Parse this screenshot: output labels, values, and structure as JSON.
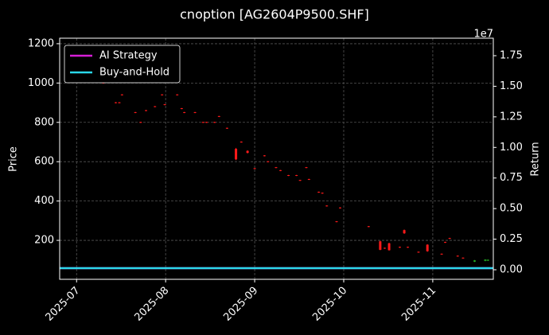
{
  "chart_data": {
    "type": "candlestick",
    "title": "cnoption [AG2604P9500.SHF]",
    "ylabel": "Price",
    "y2label": "Return",
    "y2_offset_label": "1e7",
    "xlim": [
      -0.19,
      4.68
    ],
    "xticks": [
      {
        "value": 0,
        "label": "2025-07"
      },
      {
        "value": 1,
        "label": "2025-08"
      },
      {
        "value": 2,
        "label": "2025-09"
      },
      {
        "value": 3,
        "label": "2025-10"
      },
      {
        "value": 4,
        "label": "2025-11"
      }
    ],
    "ylim": [
      2,
      1228
    ],
    "yticks": [
      200,
      400,
      600,
      800,
      1000,
      1200
    ],
    "y2lim": [
      -780000,
      18930000
    ],
    "y2ticks": [
      {
        "value": 0,
        "label": "0.00"
      },
      {
        "value": 2500000,
        "label": "0.25"
      },
      {
        "value": 5000000,
        "label": "0.50"
      },
      {
        "value": 7500000,
        "label": "0.75"
      },
      {
        "value": 10000000,
        "label": "1.00"
      },
      {
        "value": 12500000,
        "label": "1.25"
      },
      {
        "value": 15000000,
        "label": "1.50"
      },
      {
        "value": 17500000,
        "label": "1.75"
      }
    ],
    "grid": true,
    "legend": "upper left",
    "up_color": "#22a822",
    "down_color": "#ff1a1a",
    "x": [
      0.3,
      0.44,
      0.48,
      0.51,
      0.66,
      0.72,
      0.78,
      0.88,
      0.96,
      0.99,
      1.13,
      1.18,
      1.21,
      1.33,
      1.42,
      1.46,
      1.55,
      1.6,
      1.69,
      1.79,
      1.85,
      1.92,
      2.0,
      2.11,
      2.15,
      2.24,
      2.29,
      2.38,
      2.47,
      2.51,
      2.58,
      2.61,
      2.72,
      2.76,
      2.81,
      2.92,
      2.96,
      3.28,
      3.41,
      3.46,
      3.51,
      3.63,
      3.68,
      3.72,
      3.84,
      3.94,
      4.1,
      4.14,
      4.19,
      4.28,
      4.34,
      4.47,
      4.59,
      4.62
    ],
    "ohlc": [
      [
        1002,
        1003,
        997,
        998
      ],
      [
        902,
        903,
        897,
        898
      ],
      [
        902,
        903,
        897,
        898
      ],
      [
        942,
        943,
        937,
        938
      ],
      [
        852,
        853,
        847,
        848
      ],
      [
        802,
        803,
        797,
        798
      ],
      [
        862,
        863,
        857,
        858
      ],
      [
        882,
        883,
        877,
        878
      ],
      [
        942,
        943,
        937,
        938
      ],
      [
        892,
        893,
        887,
        888
      ],
      [
        942,
        943,
        937,
        938
      ],
      [
        872,
        873,
        867,
        868
      ],
      [
        852,
        853,
        847,
        848
      ],
      [
        852,
        853,
        847,
        848
      ],
      [
        802,
        803,
        797,
        798
      ],
      [
        802,
        803,
        797,
        798
      ],
      [
        802,
        803,
        797,
        798
      ],
      [
        832,
        833,
        827,
        828
      ],
      [
        772,
        773,
        767,
        768
      ],
      [
        665,
        670,
        608,
        612
      ],
      [
        702,
        703,
        697,
        698
      ],
      [
        655,
        658,
        642,
        645
      ],
      [
        567,
        568,
        562,
        563
      ],
      [
        632,
        633,
        627,
        628
      ],
      [
        602,
        603,
        597,
        598
      ],
      [
        572,
        573,
        567,
        568
      ],
      [
        557,
        558,
        552,
        553
      ],
      [
        532,
        533,
        527,
        528
      ],
      [
        532,
        533,
        527,
        528
      ],
      [
        507,
        508,
        502,
        503
      ],
      [
        572,
        573,
        567,
        568
      ],
      [
        512,
        513,
        507,
        508
      ],
      [
        447,
        448,
        442,
        443
      ],
      [
        442,
        443,
        437,
        438
      ],
      [
        377,
        378,
        372,
        373
      ],
      [
        297,
        298,
        292,
        293
      ],
      [
        367,
        368,
        362,
        363
      ],
      [
        272,
        273,
        267,
        268
      ],
      [
        195,
        198,
        150,
        152
      ],
      [
        162,
        163,
        157,
        158
      ],
      [
        185,
        188,
        148,
        150
      ],
      [
        167,
        168,
        162,
        163
      ],
      [
        252,
        255,
        233,
        236
      ],
      [
        167,
        168,
        162,
        163
      ],
      [
        142,
        143,
        137,
        138
      ],
      [
        178,
        180,
        142,
        145
      ],
      [
        132,
        133,
        127,
        128
      ],
      [
        192,
        193,
        187,
        188
      ],
      [
        212,
        213,
        207,
        208
      ],
      [
        122,
        123,
        117,
        118
      ],
      [
        112,
        113,
        107,
        108
      ],
      [
        92,
        100,
        90,
        98
      ],
      [
        96,
        104,
        94,
        102
      ],
      [
        97,
        103,
        95,
        101
      ]
    ],
    "series": [
      {
        "name": "AI Strategy",
        "color": "#d61ed6",
        "axis": "y2",
        "x": [
          -0.19,
          4.68
        ],
        "values": [
          130000,
          130000
        ]
      },
      {
        "name": "Buy-and-Hold",
        "color": "#2ad8ea",
        "axis": "y2",
        "x": [
          -0.19,
          4.68
        ],
        "values": [
          130000,
          130000
        ]
      }
    ]
  }
}
